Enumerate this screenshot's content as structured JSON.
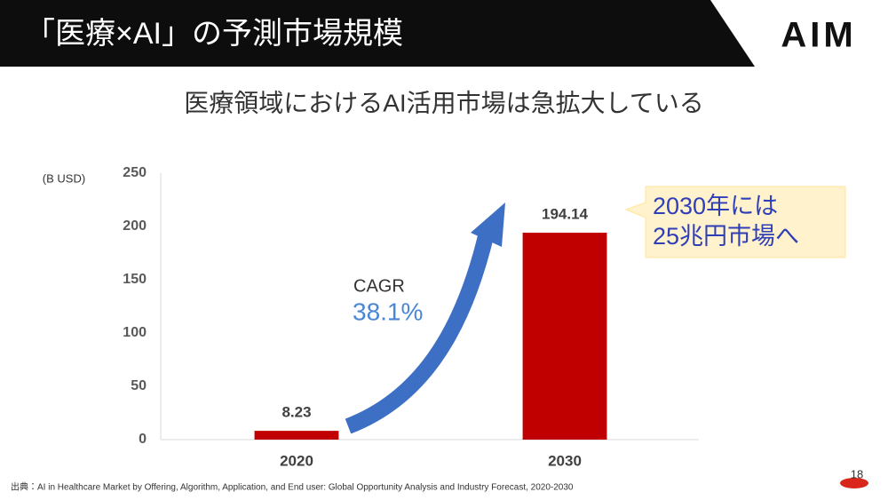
{
  "header": {
    "title": "「医療×AI」の予測市場規模",
    "logo": "AIM"
  },
  "subtitle": "医療領域におけるAI活用市場は急拡大している",
  "chart_data": {
    "type": "bar",
    "y_label": "(B USD)",
    "categories": [
      "2020",
      "2030"
    ],
    "values": [
      8.23,
      194.14
    ],
    "color": "#c00000",
    "ylim": [
      0,
      250
    ],
    "yticks": [
      0,
      50,
      100,
      150,
      200,
      250
    ],
    "grid": false,
    "annotations": {
      "cagr_label": "CAGR",
      "cagr_value": "38.1%",
      "callout": [
        "2030年には",
        "25兆円市場へ"
      ]
    }
  },
  "source": "出典：AI in Healthcare Market by Offering, Algorithm, Application, and End user: Global Opportunity Analysis and Industry Forecast, 2020-2030",
  "page_number": "18"
}
